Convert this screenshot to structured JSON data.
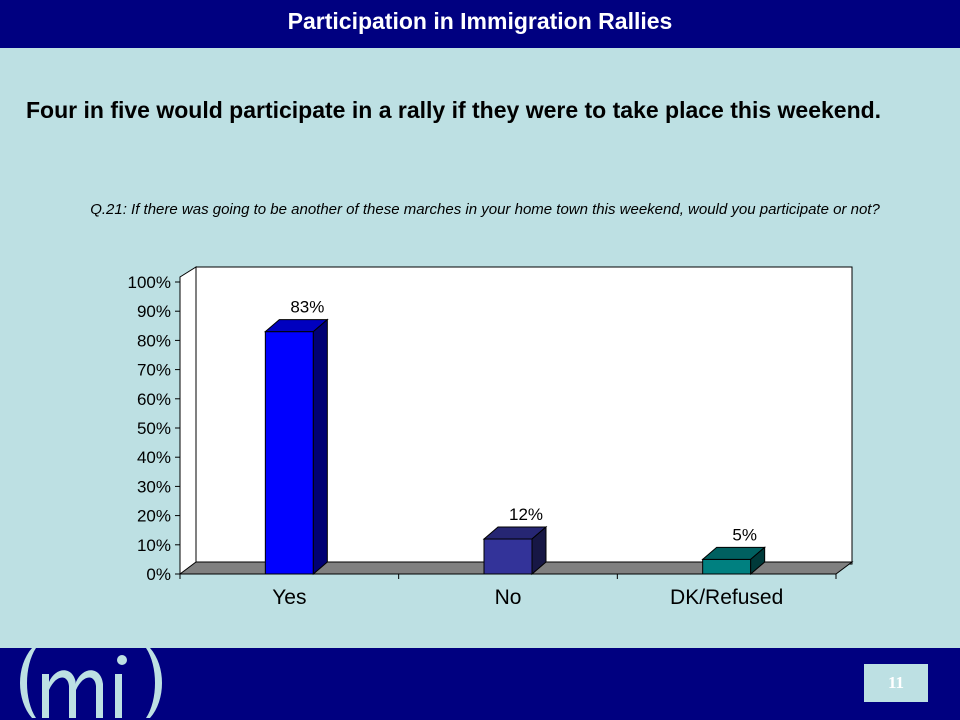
{
  "header": {
    "title": "Participation in Immigration Rallies"
  },
  "headline": "Four in five would participate in a rally if they were to take place this weekend.",
  "question": "Q.21:  If there was going to be another of these marches in your home town this weekend, would you participate or not?",
  "footer": {
    "page_number": "11",
    "logo": "mi"
  },
  "chart_data": {
    "type": "bar",
    "categories": [
      "Yes",
      "No",
      "DK/Refused"
    ],
    "values": [
      83,
      12,
      5
    ],
    "data_labels": [
      "83%",
      "12%",
      "5%"
    ],
    "yticks": [
      "0%",
      "10%",
      "20%",
      "30%",
      "40%",
      "50%",
      "60%",
      "70%",
      "80%",
      "90%",
      "100%"
    ],
    "ylim": [
      0,
      100
    ],
    "grid": false,
    "style": "3d",
    "bar_colors": [
      "#0000ff",
      "#333399",
      "#008080"
    ],
    "plot_background": "#ffffff",
    "floor_color": "#808080"
  }
}
